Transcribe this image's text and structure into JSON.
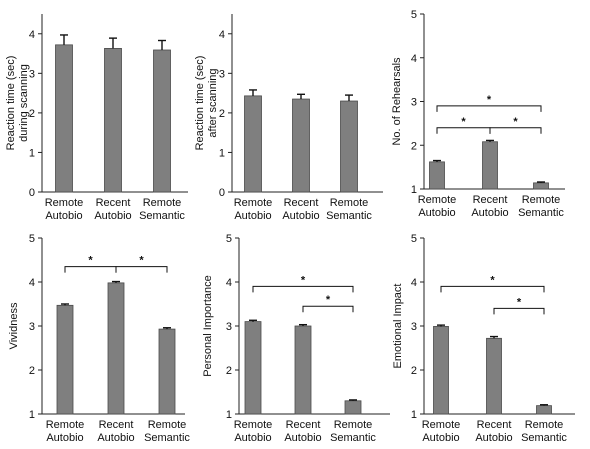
{
  "colors": {
    "bar": "#7f7f7f",
    "bar_edge": "#4a4a4a",
    "axis": "#222222"
  },
  "chart_data": [
    {
      "type": "bar",
      "categories": [
        [
          "Remote",
          "Autobio"
        ],
        [
          "Recent",
          "Autobio"
        ],
        [
          "Remote",
          "Semantic"
        ]
      ],
      "values": [
        3.72,
        3.63,
        3.59
      ],
      "errors": [
        0.25,
        0.26,
        0.24
      ],
      "ylabel": [
        "Reaction time (sec)",
        "during scanning"
      ],
      "ylim": [
        0,
        4.5
      ],
      "yticks": [
        "0",
        "1",
        "2",
        "3",
        "4"
      ],
      "yticks_values": [
        0,
        1,
        2,
        3,
        4
      ],
      "significance": []
    },
    {
      "type": "bar",
      "categories": [
        [
          "Remote",
          "Autobio"
        ],
        [
          "Recent",
          "Autobio"
        ],
        [
          "Remote",
          "Semantic"
        ]
      ],
      "values": [
        2.43,
        2.35,
        2.3
      ],
      "errors": [
        0.15,
        0.12,
        0.15
      ],
      "ylabel": [
        "Reaction time (sec)",
        "after scanning"
      ],
      "ylim": [
        0,
        4.5
      ],
      "yticks": [
        "0",
        "1",
        "2",
        "3",
        "4"
      ],
      "yticks_values": [
        0,
        1,
        2,
        3,
        4
      ],
      "significance": []
    },
    {
      "type": "bar",
      "categories": [
        [
          "Remote",
          "Autobio"
        ],
        [
          "Recent",
          "Autobio"
        ],
        [
          "Remote",
          "Semantic"
        ]
      ],
      "values": [
        1.62,
        2.08,
        1.14
      ],
      "errors": [
        0.03,
        0.03,
        0.02
      ],
      "ylabel": [
        "No. of Rehearsals"
      ],
      "ylim": [
        1,
        5
      ],
      "yticks": [
        "1",
        "2",
        "3",
        "4",
        "5"
      ],
      "yticks_values": [
        1,
        2,
        3,
        4,
        5
      ],
      "significance": [
        {
          "from": 0,
          "to": 2,
          "level": 2.9,
          "label": "*"
        },
        {
          "from": 0,
          "to": 1,
          "level": 2.4,
          "label": "*"
        },
        {
          "from": 1,
          "to": 2,
          "level": 2.4,
          "label": "*"
        }
      ]
    },
    {
      "type": "bar",
      "categories": [
        [
          "Remote",
          "Autobio"
        ],
        [
          "Recent",
          "Autobio"
        ],
        [
          "Remote",
          "Semantic"
        ]
      ],
      "values": [
        3.47,
        3.98,
        2.93
      ],
      "errors": [
        0.03,
        0.03,
        0.03
      ],
      "ylabel": [
        "Vividness"
      ],
      "ylim": [
        1,
        5
      ],
      "yticks": [
        "1",
        "2",
        "3",
        "4",
        "5"
      ],
      "yticks_values": [
        1,
        2,
        3,
        4,
        5
      ],
      "significance": [
        {
          "from": 0,
          "to": 1,
          "level": 4.35,
          "label": "*"
        },
        {
          "from": 1,
          "to": 2,
          "level": 4.35,
          "label": "*"
        }
      ]
    },
    {
      "type": "bar",
      "categories": [
        [
          "Remote",
          "Autobio"
        ],
        [
          "Recent",
          "Autobio"
        ],
        [
          "Remote",
          "Semantic"
        ]
      ],
      "values": [
        3.1,
        3.0,
        1.3
      ],
      "errors": [
        0.03,
        0.03,
        0.02
      ],
      "ylabel": [
        "Personal Importance"
      ],
      "ylim": [
        1,
        5
      ],
      "yticks": [
        "1",
        "2",
        "3",
        "4",
        "5"
      ],
      "yticks_values": [
        1,
        2,
        3,
        4,
        5
      ],
      "significance": [
        {
          "from": 0,
          "to": 2,
          "level": 3.9,
          "label": "*"
        },
        {
          "from": 1,
          "to": 2,
          "level": 3.45,
          "label": "*"
        }
      ]
    },
    {
      "type": "bar",
      "categories": [
        [
          "Remote",
          "Autobio"
        ],
        [
          "Recent",
          "Autobio"
        ],
        [
          "Remote",
          "Semantic"
        ]
      ],
      "values": [
        2.99,
        2.72,
        1.19
      ],
      "errors": [
        0.03,
        0.04,
        0.02
      ],
      "ylabel": [
        "Emotional Impact"
      ],
      "ylim": [
        1,
        5
      ],
      "yticks": [
        "1",
        "2",
        "3",
        "4",
        "5"
      ],
      "yticks_values": [
        1,
        2,
        3,
        4,
        5
      ],
      "significance": [
        {
          "from": 0,
          "to": 2,
          "level": 3.9,
          "label": "*"
        },
        {
          "from": 1,
          "to": 2,
          "level": 3.4,
          "label": "*"
        }
      ]
    }
  ]
}
